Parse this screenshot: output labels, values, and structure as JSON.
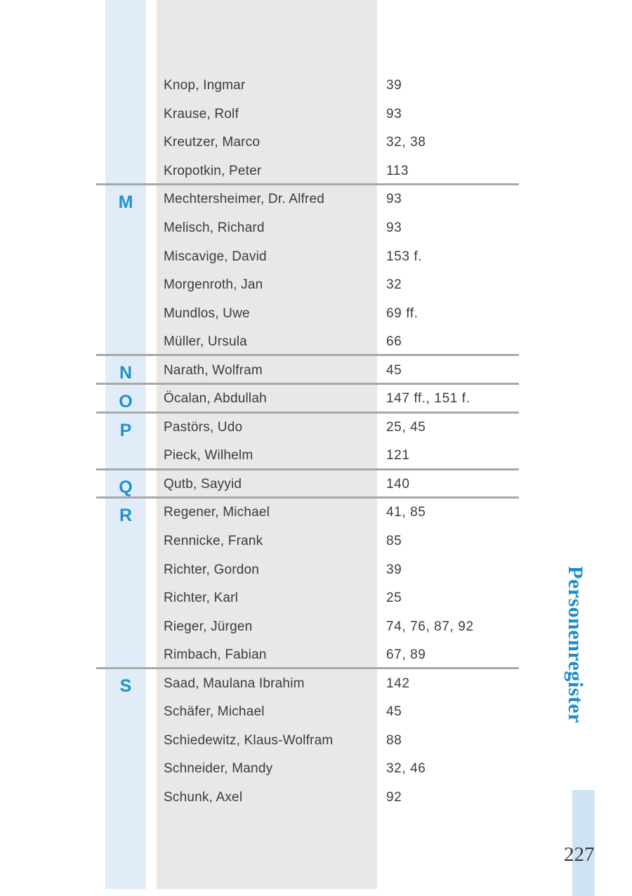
{
  "sidebar_title": "Personenregister",
  "page_number": "227",
  "colors": {
    "rail_blue": "#e0edf8",
    "panel_gray": "#e8e8e7",
    "corner_bar_blue": "#cfe4f2",
    "letter_blue": "#2191cd",
    "title_blue": "#1d8dc9",
    "rule_gray": "#a8a8a8",
    "text_gray": "#3d3b3a"
  },
  "index": {
    "sections": [
      {
        "letter": "",
        "entries": [
          {
            "name": "Knop, Ingmar",
            "pages": "39"
          },
          {
            "name": "Krause, Rolf",
            "pages": "93"
          },
          {
            "name": "Kreutzer, Marco",
            "pages": "32, 38"
          },
          {
            "name": "Kropotkin, Peter",
            "pages": "113"
          }
        ]
      },
      {
        "letter": "M",
        "entries": [
          {
            "name": "Mechtersheimer, Dr. Alfred",
            "pages": "93"
          },
          {
            "name": "Melisch, Richard",
            "pages": "93"
          },
          {
            "name": "Miscavige, David",
            "pages": "153 f."
          },
          {
            "name": "Morgenroth, Jan",
            "pages": "32"
          },
          {
            "name": "Mundlos, Uwe",
            "pages": "69 ff."
          },
          {
            "name": "Müller, Ursula",
            "pages": "66"
          }
        ]
      },
      {
        "letter": "N",
        "entries": [
          {
            "name": "Narath, Wolfram",
            "pages": "45"
          }
        ]
      },
      {
        "letter": "O",
        "entries": [
          {
            "name": "Öcalan, Abdullah",
            "pages": "147 ff., 151 f."
          }
        ]
      },
      {
        "letter": "P",
        "entries": [
          {
            "name": "Pastörs, Udo",
            "pages": "25, 45"
          },
          {
            "name": "Pieck, Wilhelm",
            "pages": "121"
          }
        ]
      },
      {
        "letter": "Q",
        "entries": [
          {
            "name": "Qutb, Sayyid",
            "pages": "140"
          }
        ]
      },
      {
        "letter": "R",
        "entries": [
          {
            "name": "Regener, Michael",
            "pages": "41, 85"
          },
          {
            "name": "Rennicke, Frank",
            "pages": "85"
          },
          {
            "name": "Richter, Gordon",
            "pages": "39"
          },
          {
            "name": "Richter, Karl",
            "pages": "25"
          },
          {
            "name": "Rieger, Jürgen",
            "pages": "74, 76, 87, 92"
          },
          {
            "name": "Rimbach, Fabian",
            "pages": "67, 89"
          }
        ]
      },
      {
        "letter": "S",
        "entries": [
          {
            "name": "Saad, Maulana Ibrahim",
            "pages": "142"
          },
          {
            "name": "Schäfer, Michael",
            "pages": "45"
          },
          {
            "name": "Schiedewitz, Klaus-Wolfram",
            "pages": "88"
          },
          {
            "name": "Schneider, Mandy",
            "pages": "32, 46"
          },
          {
            "name": "Schunk, Axel",
            "pages": "92"
          }
        ]
      }
    ]
  }
}
